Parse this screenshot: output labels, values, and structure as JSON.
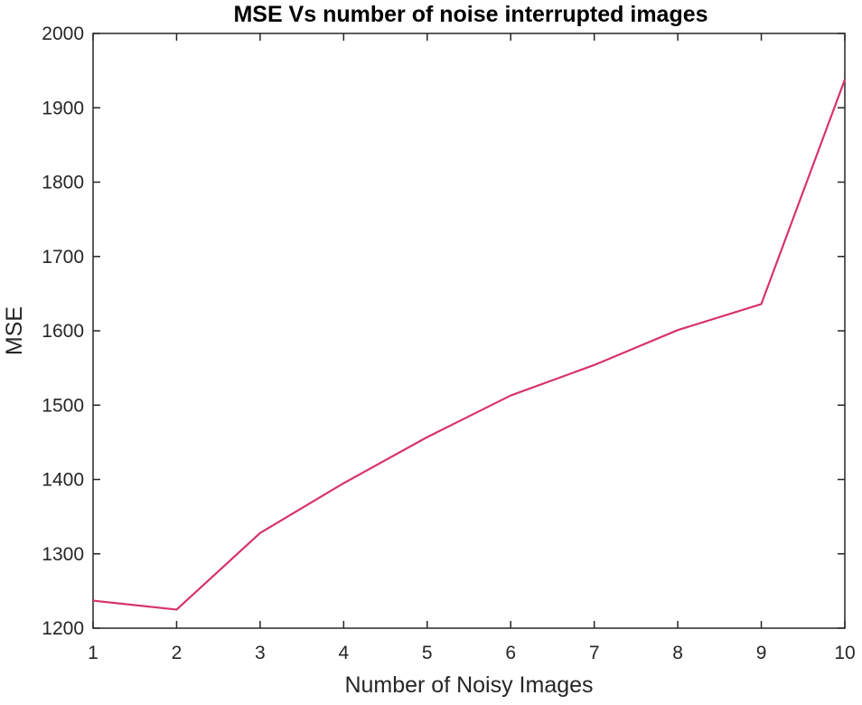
{
  "chart_data": {
    "type": "line",
    "title": "MSE Vs number of noise interrupted images",
    "xlabel": "Number of Noisy Images",
    "ylabel": "MSE",
    "x": [
      1,
      2,
      3,
      4,
      5,
      6,
      7,
      8,
      9,
      10
    ],
    "series": [
      {
        "values": [
          1237,
          1225,
          1328,
          1395,
          1457,
          1513,
          1554,
          1601,
          1636,
          1938
        ],
        "color": "#d6336c"
      }
    ],
    "xlim": [
      1,
      10
    ],
    "ylim": [
      1200,
      2000
    ],
    "xticks": [
      1,
      2,
      3,
      4,
      5,
      6,
      7,
      8,
      9,
      10
    ],
    "yticks": [
      1200,
      1300,
      1400,
      1500,
      1600,
      1700,
      1800,
      1900,
      2000
    ],
    "grid": false,
    "legend": "none"
  }
}
